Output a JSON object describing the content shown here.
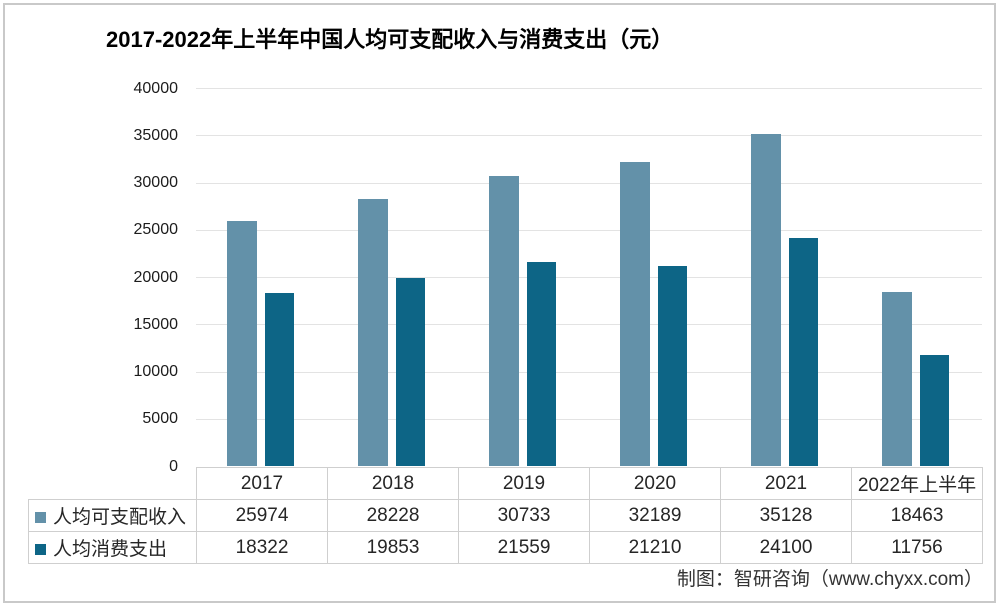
{
  "title": "2017-2022年上半年中国人均可支配收入与消费支出（元）",
  "footer": "制图：智研咨询（www.chyxx.com）",
  "colors": {
    "income_bar": "#6391a9",
    "expense_bar": "#0d6586",
    "gridline": "#e3e3e3",
    "table_border": "#cfcfcf"
  },
  "chart_data": {
    "type": "bar",
    "title": "2017-2022年上半年中国人均可支配收入与消费支出（元）",
    "categories": [
      "2017",
      "2018",
      "2019",
      "2020",
      "2021",
      "2022年上半年"
    ],
    "series": [
      {
        "name": "人均可支配收入",
        "color": "#6391a9",
        "values": [
          25974,
          28228,
          30733,
          32189,
          35128,
          18463
        ]
      },
      {
        "name": "人均消费支出",
        "color": "#0d6586",
        "values": [
          18322,
          19853,
          21559,
          21210,
          24100,
          11756
        ]
      }
    ],
    "xlabel": "",
    "ylabel": "",
    "ylim": [
      0,
      40000
    ],
    "ytick_step": 5000,
    "yticks": [
      0,
      5000,
      10000,
      15000,
      20000,
      25000,
      30000,
      35000,
      40000
    ],
    "grid": true,
    "legend_position": "table-left"
  }
}
